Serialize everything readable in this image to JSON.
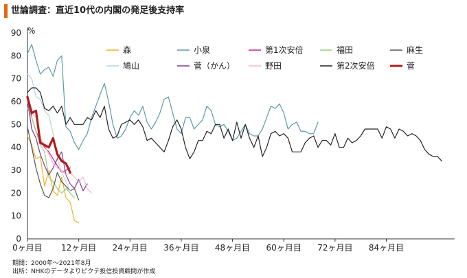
{
  "title": "世論調査：直近10代の内閣の発足後支持率",
  "notes": [
    "期間：2000年～2021年8月",
    "出所：NHKのデータよりピクテ投信投資顧問が作成"
  ],
  "chart_data": {
    "type": "line",
    "yunit": "%",
    "ylim": [
      0,
      90
    ],
    "yticks": [
      0,
      10,
      20,
      30,
      40,
      50,
      60,
      70,
      80,
      90
    ],
    "xlim": [
      0,
      100
    ],
    "xticks": [
      0,
      12,
      24,
      36,
      48,
      60,
      72,
      84
    ],
    "xtick_labels": [
      "0ヶ月目",
      "12ヶ月目",
      "24ヶ月目",
      "36ヶ月目",
      "48ヶ月目",
      "60ヶ月目",
      "72ヶ月目",
      "84ヶ月目"
    ],
    "grid": false,
    "legend": "top",
    "series": [
      {
        "name": "森",
        "color": "#f2b21b",
        "width": 1.2,
        "values": [
          45,
          41,
          35,
          36,
          23,
          30,
          21,
          19,
          27,
          18,
          16,
          8,
          7
        ]
      },
      {
        "name": "小泉",
        "color": "#5a9aa3",
        "width": 1.2,
        "values": [
          81,
          85,
          78,
          72,
          74,
          75,
          71,
          78,
          80,
          49,
          47,
          42,
          39,
          43,
          46,
          53,
          58,
          63,
          68,
          60,
          50,
          44,
          45,
          48,
          53,
          56,
          54,
          58,
          51,
          48,
          51,
          55,
          61,
          62,
          55,
          48,
          46,
          53,
          53,
          48,
          50,
          52,
          58,
          56,
          50,
          49,
          50,
          47,
          43,
          44,
          47,
          50,
          46,
          45,
          45,
          48,
          53,
          58,
          57,
          59,
          55,
          48,
          50,
          51,
          47,
          47,
          46,
          46,
          51
        ]
      },
      {
        "name": "第1次安倍",
        "color": "#d01c8b",
        "width": 1.2,
        "values": [
          63,
          53,
          47,
          43,
          40,
          38,
          35,
          32,
          29,
          30,
          31
        ]
      },
      {
        "name": "福田",
        "color": "#9acd80",
        "width": 1.2,
        "values": [
          57,
          53,
          47,
          41,
          38,
          27,
          25,
          22,
          20,
          22,
          20,
          18
        ]
      },
      {
        "name": "麻生",
        "color": "#555555",
        "width": 1.2,
        "values": [
          49,
          40,
          31,
          24,
          19,
          18,
          22,
          29,
          25,
          23,
          21,
          22,
          17
        ]
      },
      {
        "name": "鳩山",
        "color": "#b7d4de",
        "width": 1.2,
        "values": [
          72,
          70,
          62,
          61,
          56,
          54,
          46,
          35,
          29,
          25,
          21
        ]
      },
      {
        "name": "菅（かん）",
        "color": "#7a3b8f",
        "width": 1.2,
        "values": [
          61,
          48,
          44,
          37,
          32,
          28,
          31,
          35,
          38,
          28,
          24,
          22,
          26,
          21,
          24
        ]
      },
      {
        "name": "野田",
        "color": "#f5b6c8",
        "width": 1.2,
        "values": [
          60,
          55,
          53,
          44,
          41,
          37,
          33,
          31,
          30,
          28,
          29,
          27,
          25,
          27,
          22,
          20
        ]
      },
      {
        "name": "第2次安倍",
        "color": "#222222",
        "width": 1.2,
        "values": [
          64,
          66,
          66,
          64,
          57,
          56,
          58,
          55,
          58,
          50,
          53,
          50,
          50,
          50,
          53,
          52,
          56,
          53,
          58,
          48,
          44,
          45,
          50,
          51,
          52,
          50,
          52,
          49,
          43,
          44,
          42,
          40,
          38,
          43,
          49,
          52,
          48,
          40,
          35,
          38,
          43,
          43,
          47,
          46,
          50,
          50,
          44,
          48,
          43,
          51,
          44,
          50,
          44,
          40,
          45,
          36,
          40,
          46,
          47,
          45,
          46,
          44,
          38,
          38,
          38,
          42,
          44,
          45,
          40,
          43,
          43,
          41,
          46,
          40,
          40,
          44,
          42,
          43,
          45,
          48,
          48,
          48,
          48,
          44,
          49,
          48,
          44,
          48,
          47,
          45,
          46,
          45,
          43,
          39,
          37,
          36,
          36,
          34
        ]
      },
      {
        "name": "菅",
        "color": "#b31b1b",
        "width": 3.2,
        "values": [
          62,
          55,
          56,
          42,
          41,
          40,
          44,
          37,
          34,
          33,
          29
        ]
      }
    ]
  }
}
